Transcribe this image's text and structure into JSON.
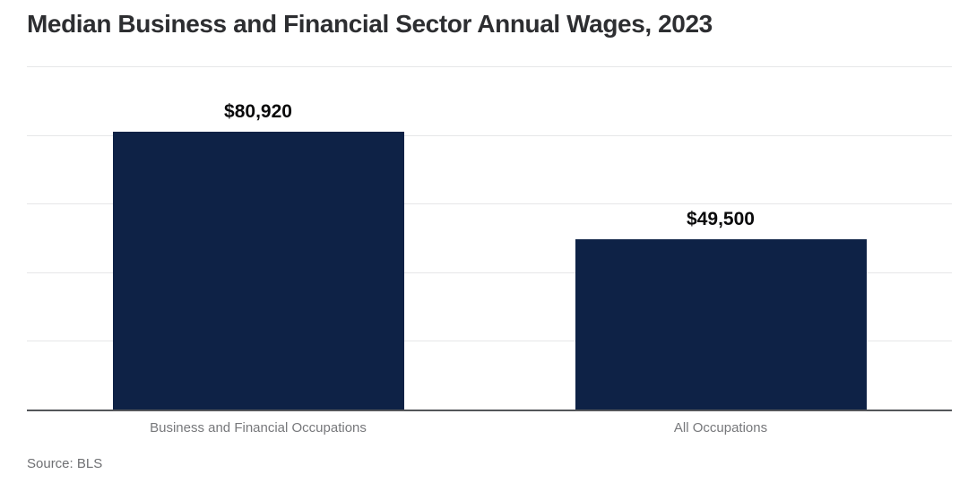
{
  "title": "Median Business and Financial Sector Annual Wages, 2023",
  "source": "Source: BLS",
  "colors": {
    "bar": "#0e2246",
    "gridline": "#e6e7e8",
    "axis": "#54565a",
    "title_text": "#2d2e31",
    "value_text": "#0a0a0b",
    "category_text": "#77787b",
    "background": "#ffffff"
  },
  "chart_data": {
    "type": "bar",
    "title": "Median Business and Financial Sector Annual Wages, 2023",
    "categories": [
      "Business and Financial Occupations",
      "All Occupations"
    ],
    "values": [
      80920,
      49500
    ],
    "value_labels": [
      "$80,920",
      "$49,500"
    ],
    "xlabel": "",
    "ylabel": "",
    "ylim": [
      0,
      100000
    ],
    "grid_step": 20000,
    "grid": "horizontal",
    "legend_position": "none",
    "source": "Source: BLS"
  }
}
